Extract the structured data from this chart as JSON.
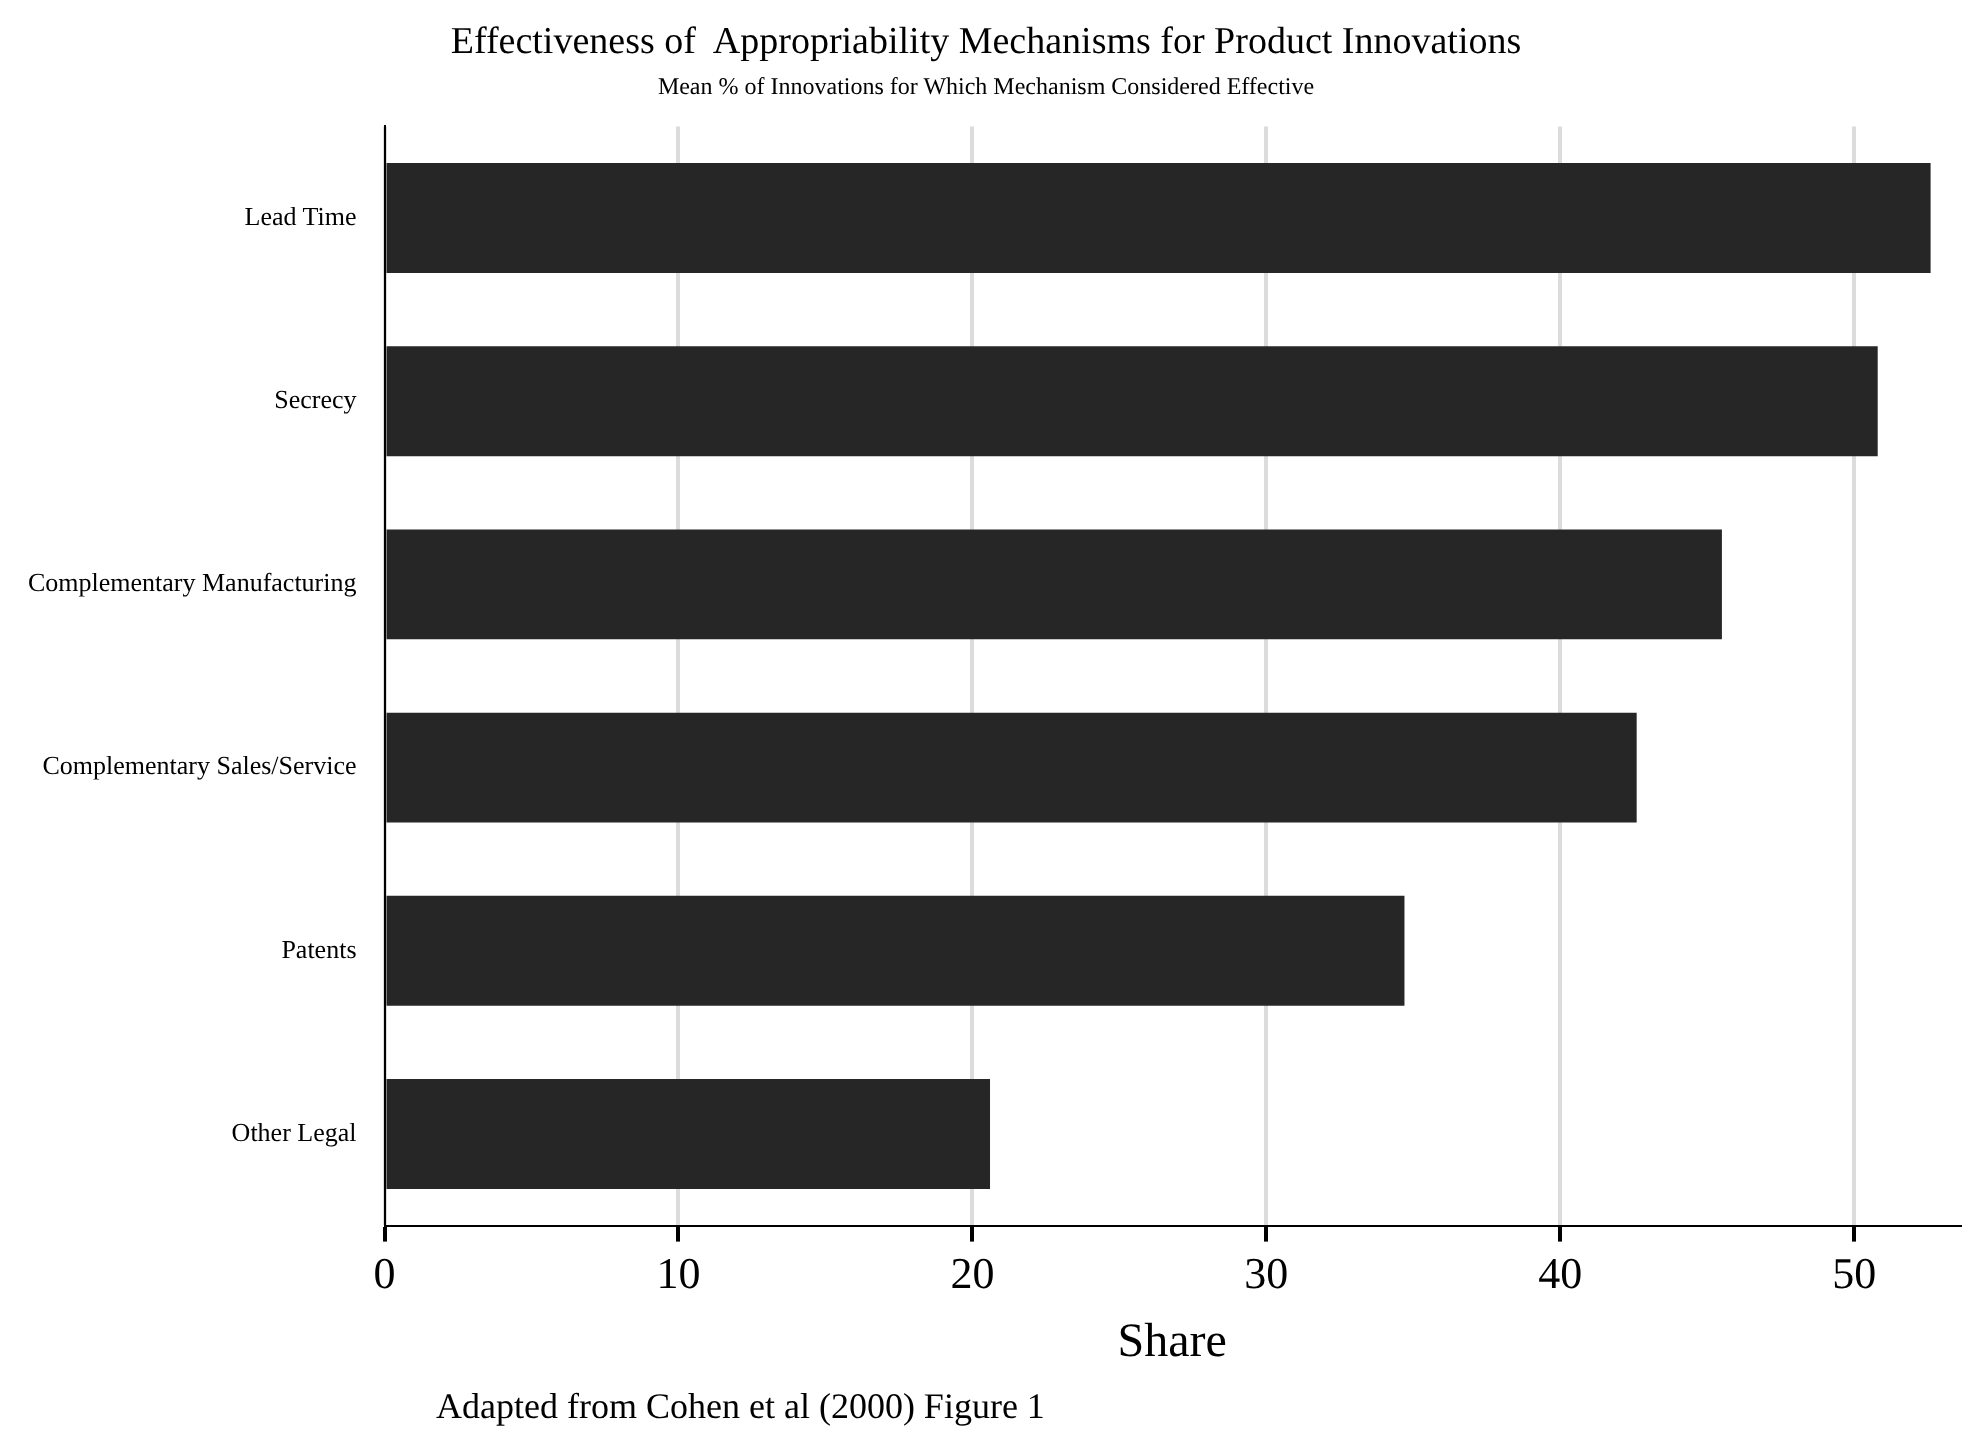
{
  "chart_data": {
    "type": "bar",
    "orientation": "horizontal",
    "title": "Effectiveness of  Appropriability Mechanisms for Product Innovations",
    "subtitle": "Mean % of Innovations for Which Mechanism Considered Effective",
    "xlabel": "Share",
    "categories": [
      "Lead Time",
      "Secrecy",
      "Complementary Manufacturing",
      "Complementary Sales/Service",
      "Patents",
      "Other Legal"
    ],
    "values": [
      52.6,
      50.8,
      45.5,
      42.6,
      34.7,
      20.6
    ],
    "color": "#262626",
    "xlim": [
      0,
      53.6
    ],
    "xticks": [
      0,
      10,
      20,
      30,
      40,
      50
    ],
    "grid": "x",
    "legend": false,
    "annotations": [
      "Adapted from Cohen et al (2000) Figure 1"
    ]
  }
}
